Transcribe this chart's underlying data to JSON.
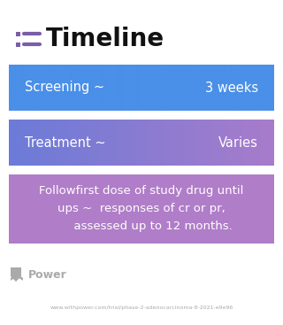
{
  "title": "Timeline",
  "title_fontsize": 20,
  "title_color": "#111111",
  "title_icon_color": "#7B5EA7",
  "bg_color": "#ffffff",
  "boxes": [
    {
      "label_left": "Screening ~",
      "label_right": "3 weeks",
      "color_left": "#4A8FE8",
      "color_right": "#4A8FE8",
      "text_color": "#ffffff",
      "fontsize": 10.5,
      "multiline": false,
      "center_text": null
    },
    {
      "label_left": "Treatment ~",
      "label_right": "Varies",
      "color_left": "#6B7BD8",
      "color_right": "#A87CCB",
      "text_color": "#ffffff",
      "fontsize": 10.5,
      "multiline": false,
      "center_text": null
    },
    {
      "label_left": null,
      "label_right": null,
      "color_left": "#B07DC8",
      "color_right": "#B07DC8",
      "text_color": "#ffffff",
      "fontsize": 9.5,
      "multiline": true,
      "center_text": "Followfirst dose of study drug until\nups ~  responses of cr or pr,\n      assessed up to 12 months."
    }
  ],
  "footer_logo_text": "Power",
  "footer_url": "www.withpower.com/trial/phase-2-adenocarcinoma-8-2021-e9e96",
  "footer_color": "#aaaaaa"
}
